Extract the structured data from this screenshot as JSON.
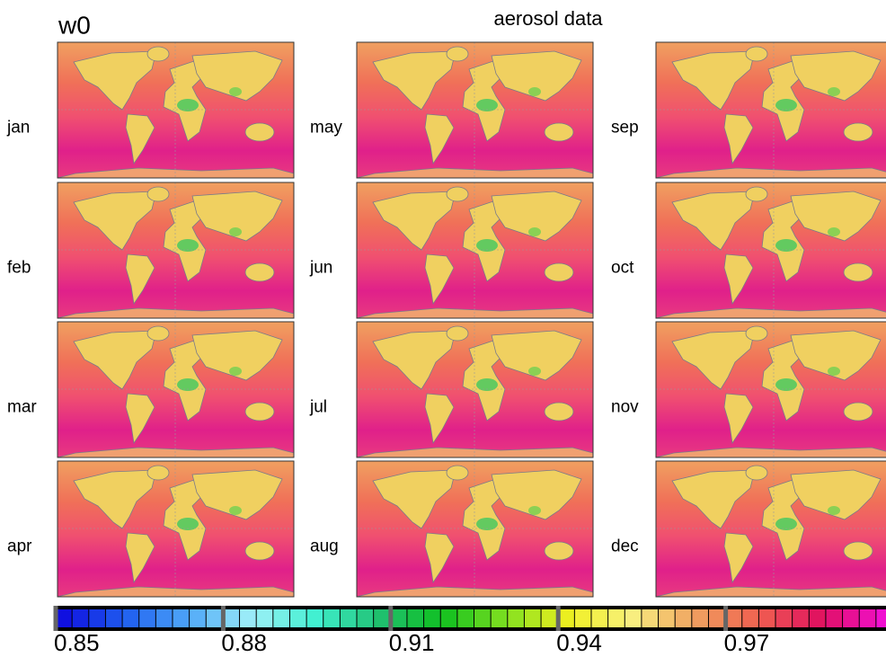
{
  "title": "w0",
  "subtitle": "aerosol data",
  "panels": [
    "jan",
    "feb",
    "mar",
    "apr",
    "may",
    "jun",
    "jul",
    "aug",
    "sep",
    "oct",
    "nov",
    "dec"
  ],
  "colorbar": {
    "lim": [
      0.85,
      1.0
    ],
    "ticks": [
      0.85,
      0.88,
      0.91,
      0.94,
      0.97
    ],
    "colors": [
      "#1010e0",
      "#2060f0",
      "#50a8f8",
      "#a0f0f8",
      "#40f0d0",
      "#20c070",
      "#10c020",
      "#80e020",
      "#f0f020",
      "#f8f080",
      "#f0a060",
      "#f06050",
      "#e01060",
      "#f010d0"
    ]
  }
}
